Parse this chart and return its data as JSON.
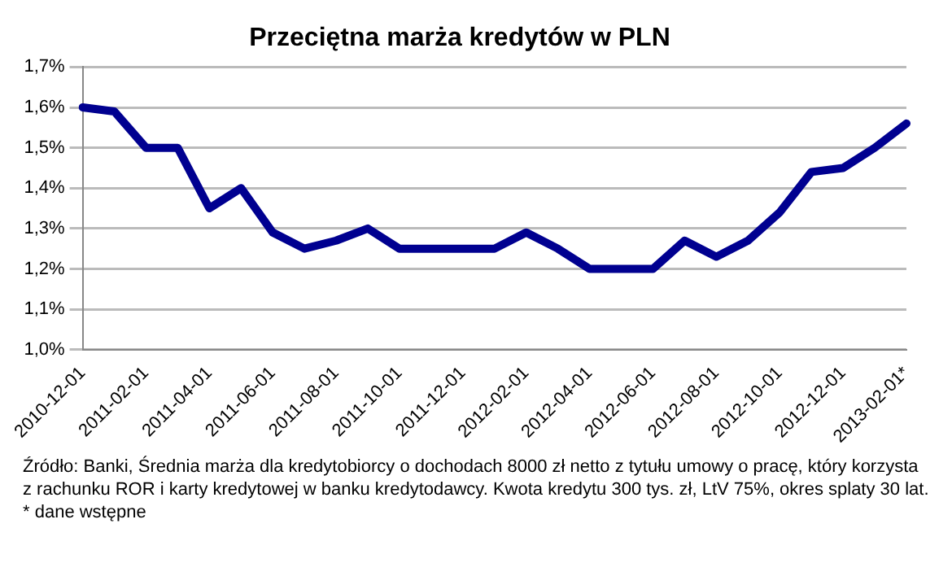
{
  "chart_data": {
    "type": "line",
    "title": "Przeciętna marża kredytów w PLN",
    "categories": [
      "2010-12-01",
      null,
      "2011-02-01",
      null,
      "2011-04-01",
      null,
      "2011-06-01",
      null,
      "2011-08-01",
      null,
      "2011-10-01",
      null,
      "2011-12-01",
      null,
      "2012-02-01",
      null,
      "2012-04-01",
      null,
      "2012-06-01",
      null,
      "2012-08-01",
      null,
      "2012-10-01",
      null,
      "2012-12-01",
      null,
      "2013-02-01*"
    ],
    "series": [
      {
        "color": "#000090",
        "values": [
          1.6,
          1.59,
          1.5,
          1.5,
          1.35,
          1.4,
          1.29,
          1.25,
          1.27,
          1.3,
          1.25,
          1.25,
          1.25,
          1.25,
          1.29,
          1.25,
          1.2,
          1.2,
          1.2,
          1.27,
          1.23,
          1.27,
          1.34,
          1.44,
          1.45,
          1.5,
          1.56
        ]
      }
    ],
    "ylim": [
      1.0,
      1.7
    ],
    "yticks": [
      {
        "value": 1.0,
        "label": "1,0%"
      },
      {
        "value": 1.1,
        "label": "1,1%"
      },
      {
        "value": 1.2,
        "label": "1,2%"
      },
      {
        "value": 1.3,
        "label": "1,3%"
      },
      {
        "value": 1.4,
        "label": "1,4%"
      },
      {
        "value": 1.5,
        "label": "1,5%"
      },
      {
        "value": 1.6,
        "label": "1,6%"
      },
      {
        "value": 1.7,
        "label": "1,7%"
      }
    ],
    "grid": "y",
    "legend": false,
    "marker": "none",
    "line_style": "solid",
    "annotations": [
      "Źródło: Banki, Średnia marża dla kredytobiorcy o dochodach 8000 zł netto  z tytułu umowy o pracę, który korzysta z rachunku ROR i karty kredytowej w banku kredytodawcy. Kwota kredytu 300 tys. zł, LtV 75%, okres splaty 30 lat.",
      "* dane wstępne"
    ]
  }
}
